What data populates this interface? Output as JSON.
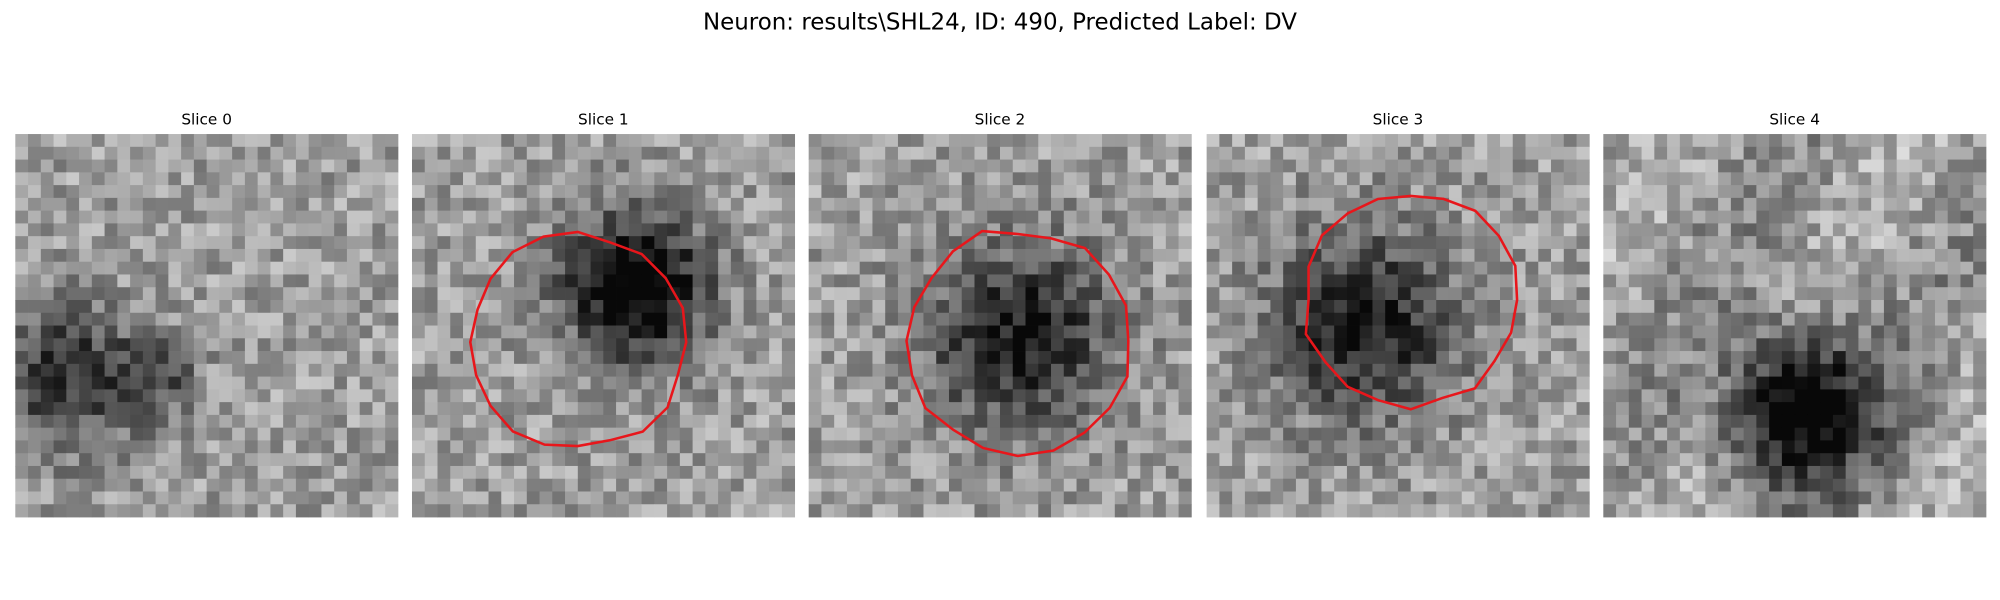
{
  "title": "Neuron: results\\SHL24, ID: 490, Predicted Label: DV",
  "panels": [
    {
      "title": "Slice 0"
    },
    {
      "title": "Slice 1"
    },
    {
      "title": "Slice 2"
    },
    {
      "title": "Slice 3"
    },
    {
      "title": "Slice 4"
    }
  ]
}
